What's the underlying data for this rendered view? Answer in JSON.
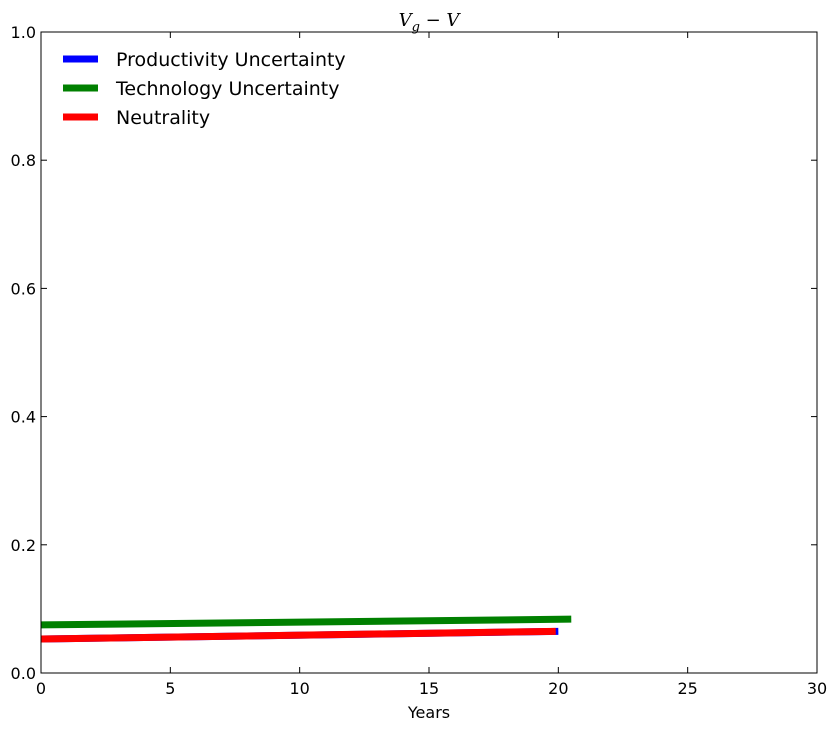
{
  "chart_data": {
    "type": "line",
    "title": "V_g − V",
    "title_display": {
      "main": "V",
      "sub": "g",
      "rest": " − V"
    },
    "xlabel": "Years",
    "ylabel": "",
    "xlim": [
      0,
      30
    ],
    "ylim": [
      0,
      1.0
    ],
    "xticks": [
      0,
      5,
      10,
      15,
      20,
      25,
      30
    ],
    "yticks": [
      0.0,
      0.2,
      0.4,
      0.6,
      0.8,
      1.0
    ],
    "xtick_labels": [
      "0",
      "5",
      "10",
      "15",
      "20",
      "25",
      "30"
    ],
    "ytick_labels": [
      "0.0",
      "0.2",
      "0.4",
      "0.6",
      "0.8",
      "1.0"
    ],
    "grid": false,
    "legend_position": "top-left",
    "series": [
      {
        "name": "Productivity Uncertainty",
        "color": "#0000ff",
        "x": [
          0,
          20
        ],
        "y": [
          0.053,
          0.065
        ]
      },
      {
        "name": "Technology Uncertainty",
        "color": "#008000",
        "x": [
          0,
          20.5
        ],
        "y": [
          0.075,
          0.084
        ]
      },
      {
        "name": "Neutrality",
        "color": "#ff0000",
        "x": [
          0,
          19.9
        ],
        "y": [
          0.053,
          0.065
        ]
      }
    ]
  }
}
